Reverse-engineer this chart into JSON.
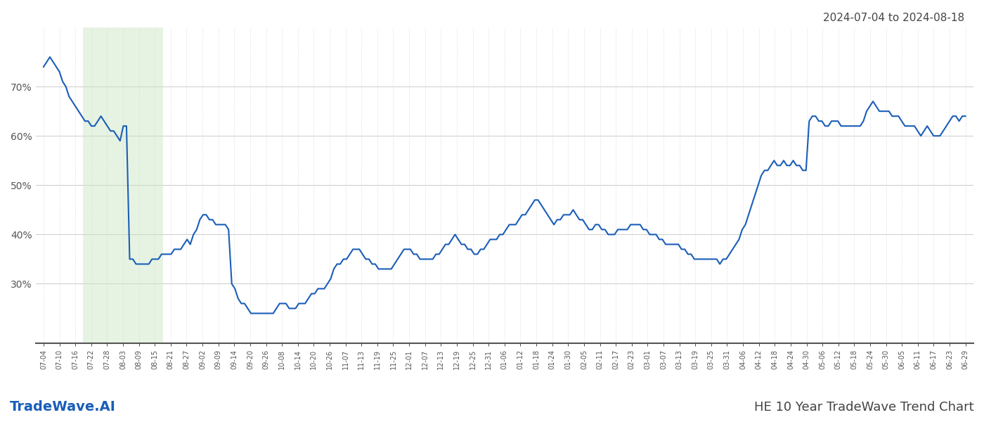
{
  "title_top_right": "2024-07-04 to 2024-08-18",
  "title_bottom_right": "HE 10 Year TradeWave Trend Chart",
  "title_bottom_left": "TradeWave.AI",
  "background_color": "#ffffff",
  "line_color": "#1a5eb8",
  "line_width": 1.5,
  "shade_color": "#c8e6c0",
  "shade_alpha": 0.45,
  "ylim": [
    18,
    82
  ],
  "yticks": [
    30,
    40,
    50,
    60,
    70
  ],
  "x_labels": [
    "07-04",
    "07-10",
    "07-16",
    "07-22",
    "07-28",
    "08-03",
    "08-09",
    "08-15",
    "08-21",
    "08-27",
    "09-02",
    "09-09",
    "09-14",
    "09-20",
    "09-26",
    "10-08",
    "10-14",
    "10-20",
    "10-26",
    "11-07",
    "11-13",
    "11-19",
    "11-25",
    "12-01",
    "12-07",
    "12-13",
    "12-19",
    "12-25",
    "12-31",
    "01-06",
    "01-12",
    "01-18",
    "01-24",
    "01-30",
    "02-05",
    "02-11",
    "02-17",
    "02-23",
    "03-01",
    "03-07",
    "03-13",
    "03-19",
    "03-25",
    "03-31",
    "04-06",
    "04-12",
    "04-18",
    "04-24",
    "04-30",
    "05-06",
    "05-12",
    "05-18",
    "05-24",
    "05-30",
    "06-05",
    "06-11",
    "06-17",
    "06-23",
    "06-29"
  ],
  "shade_start_label": "07-22",
  "shade_end_label": "08-15",
  "y_values": [
    74,
    75,
    76,
    75,
    74,
    73,
    71,
    70,
    68,
    67,
    66,
    65,
    64,
    63,
    63,
    62,
    62,
    63,
    64,
    63,
    62,
    61,
    61,
    60,
    59,
    62,
    62,
    35,
    35,
    34,
    34,
    34,
    34,
    34,
    35,
    35,
    35,
    36,
    36,
    36,
    36,
    37,
    37,
    37,
    38,
    39,
    38,
    40,
    41,
    43,
    44,
    44,
    43,
    43,
    42,
    42,
    42,
    42,
    41,
    30,
    29,
    27,
    26,
    26,
    25,
    24,
    24,
    24,
    24,
    24,
    24,
    24,
    24,
    25,
    26,
    26,
    26,
    25,
    25,
    25,
    26,
    26,
    26,
    27,
    28,
    28,
    29,
    29,
    29,
    30,
    31,
    33,
    34,
    34,
    35,
    35,
    36,
    37,
    37,
    37,
    36,
    35,
    35,
    34,
    34,
    33,
    33,
    33,
    33,
    33,
    34,
    35,
    36,
    37,
    37,
    37,
    36,
    36,
    35,
    35,
    35,
    35,
    35,
    36,
    36,
    37,
    38,
    38,
    39,
    40,
    39,
    38,
    38,
    37,
    37,
    36,
    36,
    37,
    37,
    38,
    39,
    39,
    39,
    40,
    40,
    41,
    42,
    42,
    42,
    43,
    44,
    44,
    45,
    46,
    47,
    47,
    46,
    45,
    44,
    43,
    42,
    43,
    43,
    44,
    44,
    44,
    45,
    44,
    43,
    43,
    42,
    41,
    41,
    42,
    42,
    41,
    41,
    40,
    40,
    40,
    41,
    41,
    41,
    41,
    42,
    42,
    42,
    42,
    41,
    41,
    40,
    40,
    40,
    39,
    39,
    38,
    38,
    38,
    38,
    38,
    37,
    37,
    36,
    36,
    35,
    35,
    35,
    35,
    35,
    35,
    35,
    35,
    34,
    35,
    35,
    36,
    37,
    38,
    39,
    41,
    42,
    44,
    46,
    48,
    50,
    52,
    53,
    53,
    54,
    55,
    54,
    54,
    55,
    54,
    54,
    55,
    54,
    54,
    53,
    53,
    63,
    64,
    64,
    63,
    63,
    62,
    62,
    63,
    63,
    63,
    62,
    62,
    62,
    62,
    62,
    62,
    62,
    63,
    65,
    66,
    67,
    66,
    65,
    65,
    65,
    65,
    64,
    64,
    64,
    63,
    62,
    62,
    62,
    62,
    61,
    60,
    61,
    62,
    61,
    60,
    60,
    60,
    61,
    62,
    63,
    64,
    64,
    63,
    64,
    64
  ]
}
